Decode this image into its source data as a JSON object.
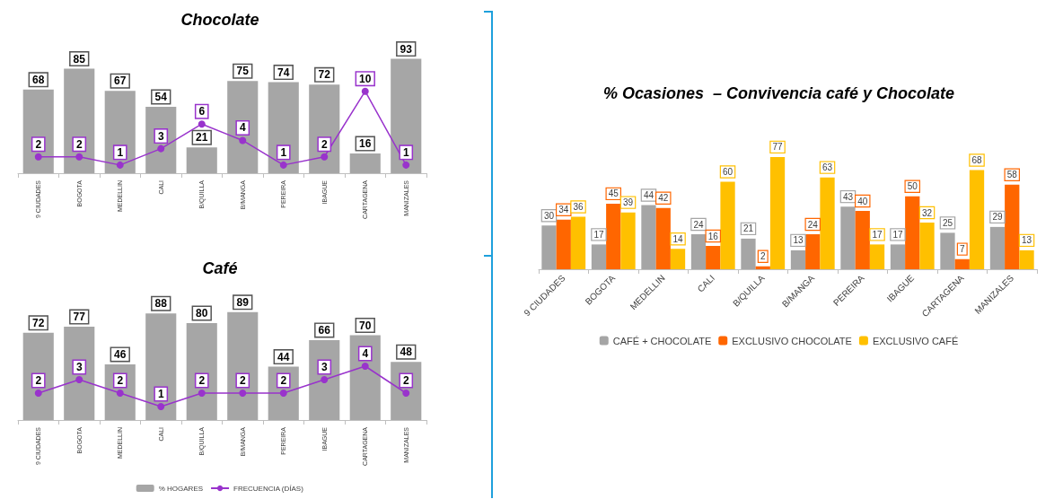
{
  "chart_data": [
    {
      "type": "bar",
      "title": "Chocolate",
      "categories": [
        "9 CIUDADES",
        "BOGOTA",
        "MEDELLIN",
        "CALI",
        "B/QUILLA",
        "B/MANGA",
        "PEREIRA",
        "IBAGUE",
        "CARTAGENA",
        "MANIZALES"
      ],
      "series": [
        {
          "type": "bar",
          "color": "#a6a6a6",
          "values": [
            68,
            85,
            67,
            54,
            21,
            75,
            74,
            72,
            16,
            93
          ]
        },
        {
          "type": "line",
          "axis": "y2",
          "color": "#9933cc",
          "values": [
            2,
            2,
            1,
            3,
            6,
            4,
            1,
            2,
            10,
            1
          ]
        }
      ],
      "marker": "circle",
      "data_labels": true
    },
    {
      "type": "bar",
      "title": "Café",
      "categories": [
        "9 CIUDADES",
        "BOGOTA",
        "MEDELLIN",
        "CALI",
        "B/QUILLA",
        "B/MANGA",
        "PEREIRA",
        "IBAGUE",
        "CARTAGENA",
        "MANIZALES"
      ],
      "series": [
        {
          "type": "bar",
          "name": "% HOGARES",
          "color": "#a6a6a6",
          "values": [
            72,
            77,
            46,
            88,
            80,
            89,
            44,
            66,
            70,
            48
          ]
        },
        {
          "type": "line",
          "axis": "y2",
          "name": "FRECUENCIA (DÍAS)",
          "color": "#9933cc",
          "values": [
            2,
            3,
            2,
            1,
            2,
            2,
            2,
            3,
            4,
            2
          ]
        }
      ],
      "marker": "circle",
      "data_labels": true,
      "legend": "bottom"
    },
    {
      "type": "bar",
      "title": "% Ocasiones  – Convivencia café y Chocolate",
      "categories": [
        "9 CIUDADES",
        "BOGOTA",
        "MEDELLIN",
        "CALI",
        "B/QUILLA",
        "B/MANGA",
        "PEREIRA",
        "IBAGUE",
        "CARTAGENA",
        "MANIZALES"
      ],
      "series": [
        {
          "name": "CAFÉ + CHOCOLATE",
          "color": "#a5a5a5",
          "values": [
            30,
            17,
            44,
            24,
            21,
            13,
            43,
            17,
            25,
            29
          ]
        },
        {
          "name": "EXCLUSIVO CHOCOLATE",
          "color": "#ff6600",
          "values": [
            34,
            45,
            42,
            16,
            2,
            24,
            40,
            50,
            7,
            58
          ]
        },
        {
          "name": "EXCLUSIVO CAFÉ",
          "color": "#ffc000",
          "values": [
            36,
            39,
            14,
            60,
            77,
            63,
            17,
            32,
            68,
            13
          ]
        }
      ],
      "data_labels": true,
      "legend": "bottom"
    }
  ]
}
